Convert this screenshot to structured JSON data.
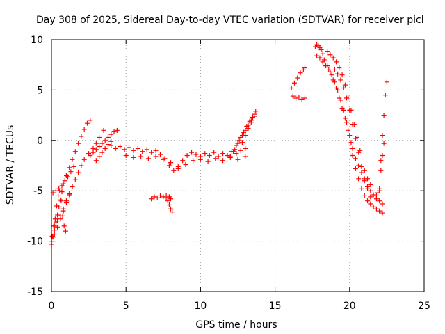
{
  "chart_data": {
    "type": "scatter",
    "title": "Day 308 of 2025, Sidereal Day-to-day VTEC variation (SDTVAR) for receiver picl",
    "xlabel": "GPS time / hours",
    "ylabel": "SDTVAR / TECUs",
    "xlim": [
      0,
      25
    ],
    "ylim": [
      -15,
      10
    ],
    "xticks": [
      "0",
      "5",
      "10",
      "15",
      "20",
      "25"
    ],
    "yticks": [
      "10",
      "5",
      "0",
      "-5",
      "-10",
      "-15"
    ],
    "grid": true,
    "marker": "plus",
    "color": "#ff0000",
    "series": [
      {
        "name": "SDTVAR",
        "x": [
          0.0,
          0.1,
          0.2,
          0.3,
          0.4,
          0.5,
          0.6,
          0.7,
          0.8,
          1.0,
          1.2,
          1.4,
          1.6,
          1.8,
          2.0,
          2.2,
          2.4,
          2.6,
          0.0,
          0.2,
          0.4,
          0.6,
          0.8,
          1.0,
          1.2,
          1.4,
          1.6,
          1.8,
          2.0,
          2.2,
          2.5,
          2.8,
          3.0,
          3.2,
          3.5,
          0.05,
          0.15,
          0.25,
          0.35,
          0.45,
          0.55,
          0.65,
          0.75,
          0.85,
          0.95,
          0.1,
          0.3,
          0.5,
          0.7,
          0.9,
          1.1,
          1.3,
          1.5,
          0.2,
          0.4,
          0.6,
          0.8,
          1.0,
          1.2,
          1.4,
          2.6,
          2.8,
          3.0,
          3.2,
          3.4,
          3.6,
          3.8,
          4.0,
          4.2,
          4.4,
          3.0,
          3.2,
          3.4,
          3.6,
          3.8,
          4.0,
          4.0,
          4.3,
          4.6,
          4.9,
          5.2,
          5.5,
          5.8,
          6.1,
          6.4,
          6.7,
          7.0,
          7.3,
          7.6,
          7.9,
          8.2,
          8.5,
          8.8,
          9.1,
          9.4,
          9.7,
          10.0,
          10.3,
          10.6,
          10.9,
          11.2,
          11.5,
          11.8,
          12.1,
          12.4,
          12.7,
          13.0,
          5.0,
          5.5,
          6.0,
          6.5,
          7.0,
          7.5,
          8.0,
          8.5,
          9.0,
          9.5,
          10.0,
          10.5,
          11.0,
          11.5,
          12.0,
          12.5,
          13.0,
          7.7,
          7.8,
          7.9,
          8.0,
          8.1,
          6.7,
          6.9,
          7.1,
          7.3,
          7.5,
          7.7,
          7.9,
          8.0,
          12.0,
          12.2,
          12.4,
          12.6,
          12.8,
          13.0,
          13.2,
          13.4,
          13.6,
          12.3,
          12.5,
          12.7,
          12.9,
          13.1,
          13.3,
          13.5,
          12.8,
          13.0,
          13.2,
          13.4,
          13.6,
          13.7,
          16.1,
          16.3,
          16.5,
          16.7,
          16.9,
          17.0,
          16.2,
          16.4,
          16.6,
          16.8,
          17.0,
          17.7,
          17.8,
          17.9,
          18.0,
          18.1,
          18.2,
          18.3,
          18.5,
          18.7,
          18.9,
          19.1,
          19.3,
          19.5,
          19.7,
          19.9,
          20.1,
          17.8,
          18.0,
          18.2,
          18.4,
          18.6,
          18.8,
          19.0,
          19.2,
          19.4,
          19.6,
          19.8,
          20.0,
          20.2,
          20.4,
          18.5,
          18.7,
          18.9,
          19.1,
          19.3,
          19.5,
          19.7,
          19.9,
          20.1,
          20.3,
          20.5,
          20.7,
          19.0,
          19.2,
          19.4,
          19.6,
          19.8,
          20.0,
          20.2,
          20.4,
          20.6,
          20.8,
          21.0,
          21.2,
          21.4,
          20.2,
          20.4,
          20.6,
          20.8,
          21.0,
          21.2,
          21.4,
          21.6,
          21.8,
          22.0,
          22.2,
          20.6,
          20.8,
          21.0,
          21.2,
          21.4,
          21.6,
          21.8,
          22.0,
          22.2,
          21.0,
          21.2,
          21.4,
          22.0,
          22.1,
          22.2,
          22.3,
          22.4,
          22.5,
          21.8,
          21.9,
          22.0,
          22.1,
          22.2,
          22.3
        ],
        "y": [
          -10.3,
          -9.6,
          -8.9,
          -8.1,
          -7.4,
          -6.6,
          -5.9,
          -5.1,
          -4.3,
          -3.5,
          -2.7,
          -1.9,
          -1.1,
          -0.3,
          0.4,
          1.1,
          1.7,
          2.0,
          -10.0,
          -9.3,
          -8.6,
          -7.8,
          -7.0,
          -6.2,
          -5.4,
          -4.6,
          -3.9,
          -3.2,
          -2.5,
          -1.9,
          -1.3,
          -0.8,
          -0.3,
          0.3,
          1.0,
          -9.5,
          -8.5,
          -7.8,
          -6.5,
          -5.5,
          -5.0,
          -6.0,
          -7.5,
          -8.5,
          -9.0,
          -5.2,
          -5.0,
          -4.8,
          -4.5,
          -4.0,
          -3.6,
          -3.1,
          -2.6,
          -8.5,
          -8.0,
          -7.5,
          -6.8,
          -6.0,
          -5.3,
          -4.6,
          -1.5,
          -1.2,
          -0.9,
          -0.6,
          -0.3,
          0.0,
          0.3,
          0.6,
          0.9,
          1.0,
          -2.0,
          -1.6,
          -1.2,
          -0.8,
          -0.4,
          -0.1,
          -0.5,
          -0.8,
          -0.6,
          -0.9,
          -0.7,
          -1.0,
          -0.8,
          -1.1,
          -0.9,
          -1.2,
          -1.0,
          -1.4,
          -1.8,
          -2.5,
          -3.0,
          -2.6,
          -2.0,
          -1.5,
          -1.2,
          -1.4,
          -1.6,
          -1.3,
          -1.5,
          -1.2,
          -1.6,
          -1.3,
          -1.5,
          -1.1,
          -1.3,
          -1.0,
          -0.8,
          -1.5,
          -1.7,
          -1.6,
          -1.8,
          -1.6,
          -1.9,
          -2.2,
          -2.8,
          -2.4,
          -2.0,
          -1.9,
          -2.1,
          -1.8,
          -2.0,
          -1.7,
          -1.9,
          -1.6,
          -5.5,
          -6.0,
          -6.4,
          -6.8,
          -7.1,
          -5.8,
          -5.6,
          -5.7,
          -5.5,
          -5.6,
          -5.7,
          -5.6,
          -5.8,
          -1.6,
          -1.1,
          -0.5,
          0.0,
          0.5,
          1.0,
          1.5,
          2.0,
          2.6,
          -0.9,
          -0.3,
          0.3,
          0.8,
          1.4,
          1.9,
          2.3,
          -0.2,
          0.5,
          1.2,
          1.8,
          2.4,
          2.9,
          5.2,
          5.7,
          6.2,
          6.7,
          7.0,
          7.2,
          4.4,
          4.2,
          4.3,
          4.1,
          4.2,
          9.3,
          9.5,
          9.4,
          9.2,
          9.0,
          8.6,
          8.0,
          7.4,
          6.8,
          6.0,
          5.2,
          4.2,
          3.2,
          2.2,
          1.0,
          -0.2,
          8.4,
          8.2,
          7.8,
          7.4,
          7.0,
          6.5,
          5.8,
          5.0,
          4.0,
          3.0,
          1.8,
          0.5,
          -0.8,
          -1.8,
          8.8,
          8.5,
          8.2,
          7.8,
          7.2,
          6.5,
          5.5,
          4.3,
          3.0,
          1.6,
          0.3,
          -1.0,
          7.0,
          6.6,
          6.0,
          5.2,
          4.2,
          3.0,
          1.6,
          0.2,
          -1.2,
          -2.6,
          -3.8,
          -4.8,
          -5.6,
          -1.5,
          -2.8,
          -3.8,
          -4.8,
          -5.5,
          -6.0,
          -6.3,
          -6.6,
          -6.8,
          -7.0,
          -7.2,
          -2.5,
          -3.2,
          -4.0,
          -4.6,
          -5.0,
          -5.4,
          -5.8,
          -6.0,
          -6.3,
          -3.0,
          -3.8,
          -4.4,
          -5.0,
          -2.0,
          0.5,
          2.5,
          4.5,
          5.8,
          -5.5,
          -5.2,
          -4.8,
          -3.0,
          -1.5,
          -0.3
        ]
      }
    ]
  }
}
